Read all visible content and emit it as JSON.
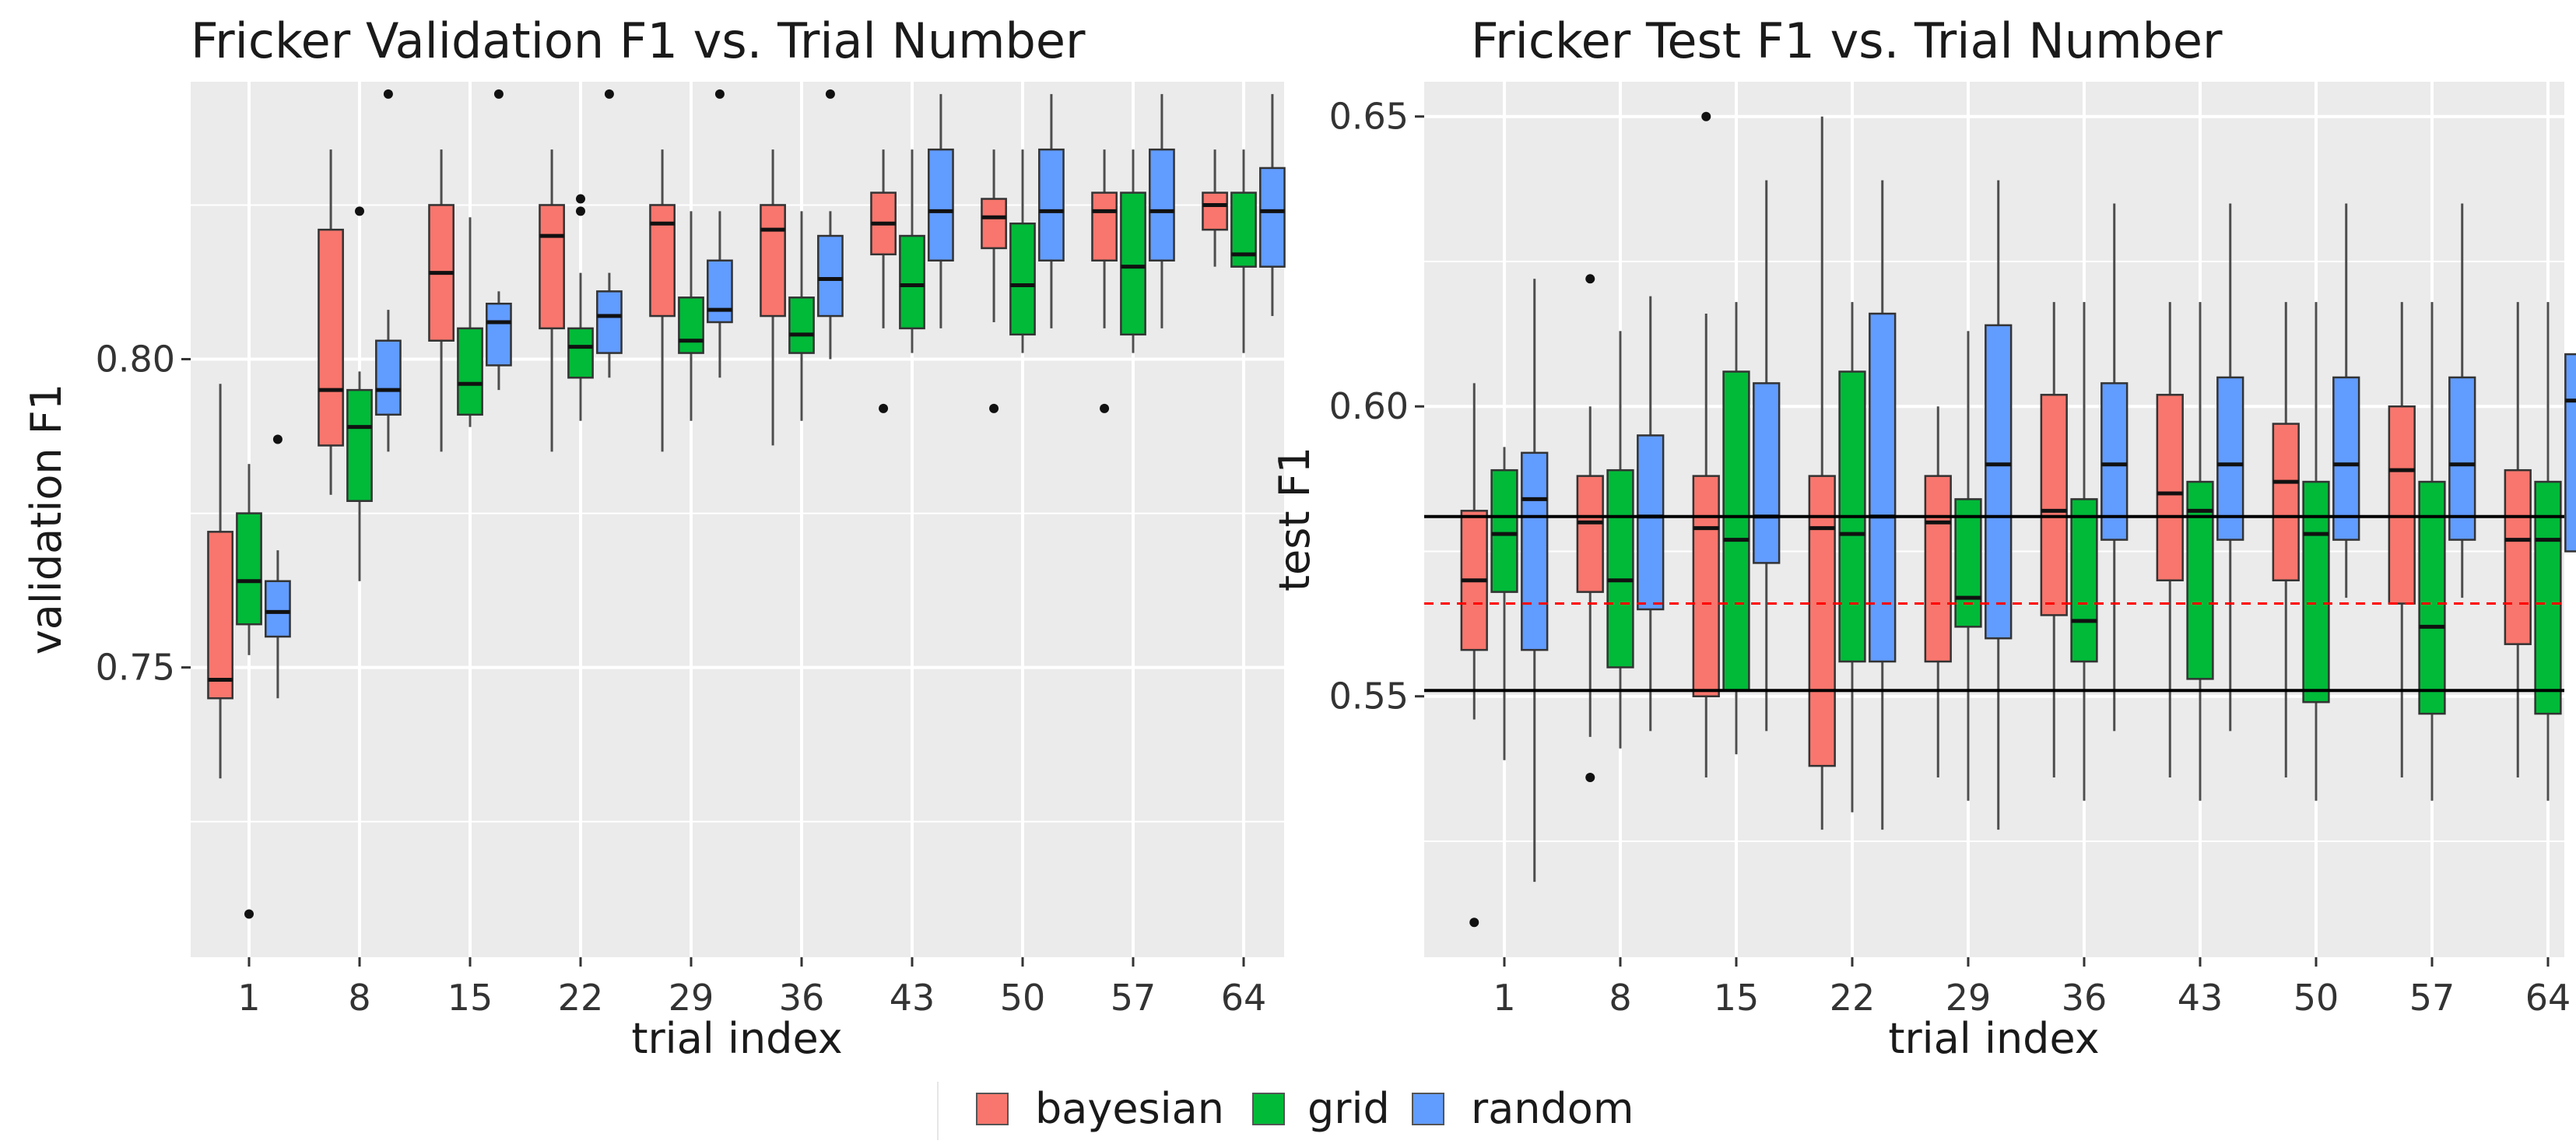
{
  "chart_data": [
    {
      "type": "boxplot",
      "title": "Fricker Validation F1 vs. Trial Number",
      "xlabel": "trial index",
      "ylabel": "validation F1",
      "categories": [
        "1",
        "8",
        "15",
        "22",
        "29",
        "36",
        "43",
        "50",
        "57",
        "64"
      ],
      "y_ticks": [
        "0.75",
        "0.80"
      ],
      "ylim": [
        0.703,
        0.845
      ],
      "grid": true,
      "series": [
        {
          "name": "bayesian",
          "color": "#f8766d",
          "boxes": [
            {
              "whisker_low": 0.732,
              "q1": 0.745,
              "median": 0.748,
              "q3": 0.772,
              "whisker_high": 0.796,
              "outliers": []
            },
            {
              "whisker_low": 0.778,
              "q1": 0.786,
              "median": 0.795,
              "q3": 0.821,
              "whisker_high": 0.834,
              "outliers": []
            },
            {
              "whisker_low": 0.785,
              "q1": 0.803,
              "median": 0.814,
              "q3": 0.825,
              "whisker_high": 0.834,
              "outliers": []
            },
            {
              "whisker_low": 0.785,
              "q1": 0.805,
              "median": 0.82,
              "q3": 0.825,
              "whisker_high": 0.834,
              "outliers": []
            },
            {
              "whisker_low": 0.785,
              "q1": 0.807,
              "median": 0.822,
              "q3": 0.825,
              "whisker_high": 0.834,
              "outliers": []
            },
            {
              "whisker_low": 0.786,
              "q1": 0.807,
              "median": 0.821,
              "q3": 0.825,
              "whisker_high": 0.834,
              "outliers": []
            },
            {
              "whisker_low": 0.805,
              "q1": 0.817,
              "median": 0.822,
              "q3": 0.827,
              "whisker_high": 0.834,
              "outliers": [
                0.792
              ]
            },
            {
              "whisker_low": 0.806,
              "q1": 0.818,
              "median": 0.823,
              "q3": 0.826,
              "whisker_high": 0.834,
              "outliers": [
                0.792
              ]
            },
            {
              "whisker_low": 0.805,
              "q1": 0.816,
              "median": 0.824,
              "q3": 0.827,
              "whisker_high": 0.834,
              "outliers": [
                0.792
              ]
            },
            {
              "whisker_low": 0.815,
              "q1": 0.821,
              "median": 0.825,
              "q3": 0.827,
              "whisker_high": 0.834,
              "outliers": []
            }
          ]
        },
        {
          "name": "grid",
          "color": "#00ba38",
          "boxes": [
            {
              "whisker_low": 0.752,
              "q1": 0.757,
              "median": 0.764,
              "q3": 0.775,
              "whisker_high": 0.783,
              "outliers": [
                0.71
              ]
            },
            {
              "whisker_low": 0.764,
              "q1": 0.777,
              "median": 0.789,
              "q3": 0.795,
              "whisker_high": 0.798,
              "outliers": [
                0.824
              ]
            },
            {
              "whisker_low": 0.789,
              "q1": 0.791,
              "median": 0.796,
              "q3": 0.805,
              "whisker_high": 0.823,
              "outliers": []
            },
            {
              "whisker_low": 0.79,
              "q1": 0.797,
              "median": 0.802,
              "q3": 0.805,
              "whisker_high": 0.814,
              "outliers": [
                0.824,
                0.826
              ]
            },
            {
              "whisker_low": 0.79,
              "q1": 0.801,
              "median": 0.803,
              "q3": 0.81,
              "whisker_high": 0.824,
              "outliers": []
            },
            {
              "whisker_low": 0.79,
              "q1": 0.801,
              "median": 0.804,
              "q3": 0.81,
              "whisker_high": 0.824,
              "outliers": []
            },
            {
              "whisker_low": 0.801,
              "q1": 0.805,
              "median": 0.812,
              "q3": 0.82,
              "whisker_high": 0.834,
              "outliers": []
            },
            {
              "whisker_low": 0.801,
              "q1": 0.804,
              "median": 0.812,
              "q3": 0.822,
              "whisker_high": 0.834,
              "outliers": []
            },
            {
              "whisker_low": 0.801,
              "q1": 0.804,
              "median": 0.815,
              "q3": 0.827,
              "whisker_high": 0.834,
              "outliers": []
            },
            {
              "whisker_low": 0.801,
              "q1": 0.815,
              "median": 0.817,
              "q3": 0.827,
              "whisker_high": 0.834,
              "outliers": []
            }
          ]
        },
        {
          "name": "random",
          "color": "#619cff",
          "boxes": [
            {
              "whisker_low": 0.745,
              "q1": 0.755,
              "median": 0.759,
              "q3": 0.764,
              "whisker_high": 0.769,
              "outliers": [
                0.787
              ]
            },
            {
              "whisker_low": 0.785,
              "q1": 0.791,
              "median": 0.795,
              "q3": 0.803,
              "whisker_high": 0.808,
              "outliers": [
                0.843
              ]
            },
            {
              "whisker_low": 0.795,
              "q1": 0.799,
              "median": 0.806,
              "q3": 0.809,
              "whisker_high": 0.811,
              "outliers": [
                0.843
              ]
            },
            {
              "whisker_low": 0.797,
              "q1": 0.801,
              "median": 0.807,
              "q3": 0.811,
              "whisker_high": 0.814,
              "outliers": [
                0.843
              ]
            },
            {
              "whisker_low": 0.797,
              "q1": 0.806,
              "median": 0.808,
              "q3": 0.816,
              "whisker_high": 0.824,
              "outliers": [
                0.843
              ]
            },
            {
              "whisker_low": 0.8,
              "q1": 0.807,
              "median": 0.813,
              "q3": 0.82,
              "whisker_high": 0.824,
              "outliers": [
                0.843
              ]
            },
            {
              "whisker_low": 0.805,
              "q1": 0.816,
              "median": 0.824,
              "q3": 0.834,
              "whisker_high": 0.843,
              "outliers": []
            },
            {
              "whisker_low": 0.805,
              "q1": 0.816,
              "median": 0.824,
              "q3": 0.834,
              "whisker_high": 0.843,
              "outliers": []
            },
            {
              "whisker_low": 0.805,
              "q1": 0.816,
              "median": 0.824,
              "q3": 0.834,
              "whisker_high": 0.843,
              "outliers": []
            },
            {
              "whisker_low": 0.807,
              "q1": 0.815,
              "median": 0.824,
              "q3": 0.831,
              "whisker_high": 0.843,
              "outliers": []
            }
          ]
        }
      ]
    },
    {
      "type": "boxplot",
      "title": "Fricker Test F1 vs. Trial Number",
      "xlabel": "trial index",
      "ylabel": "test F1",
      "categories": [
        "1",
        "8",
        "15",
        "22",
        "29",
        "36",
        "43",
        "50",
        "57",
        "64"
      ],
      "y_ticks": [
        "0.55",
        "0.60",
        "0.65"
      ],
      "ylim": [
        0.505,
        0.656
      ],
      "grid": true,
      "reference_lines": [
        {
          "value": 0.581,
          "style": "solid",
          "color": "#000000"
        },
        {
          "value": 0.566,
          "style": "dashed",
          "color": "#ff0000"
        },
        {
          "value": 0.551,
          "style": "solid",
          "color": "#000000"
        }
      ],
      "series": [
        {
          "name": "bayesian",
          "color": "#f8766d",
          "boxes": [
            {
              "whisker_low": 0.546,
              "q1": 0.558,
              "median": 0.57,
              "q3": 0.582,
              "whisker_high": 0.604,
              "outliers": [
                0.511
              ]
            },
            {
              "whisker_low": 0.543,
              "q1": 0.568,
              "median": 0.58,
              "q3": 0.588,
              "whisker_high": 0.6,
              "outliers": [
                0.536,
                0.622
              ]
            },
            {
              "whisker_low": 0.536,
              "q1": 0.55,
              "median": 0.579,
              "q3": 0.588,
              "whisker_high": 0.616,
              "outliers": [
                0.65
              ]
            },
            {
              "whisker_low": 0.527,
              "q1": 0.538,
              "median": 0.579,
              "q3": 0.588,
              "whisker_high": 0.65,
              "outliers": []
            },
            {
              "whisker_low": 0.536,
              "q1": 0.556,
              "median": 0.58,
              "q3": 0.588,
              "whisker_high": 0.6,
              "outliers": []
            },
            {
              "whisker_low": 0.536,
              "q1": 0.564,
              "median": 0.582,
              "q3": 0.602,
              "whisker_high": 0.618,
              "outliers": []
            },
            {
              "whisker_low": 0.536,
              "q1": 0.57,
              "median": 0.585,
              "q3": 0.602,
              "whisker_high": 0.618,
              "outliers": []
            },
            {
              "whisker_low": 0.536,
              "q1": 0.57,
              "median": 0.587,
              "q3": 0.597,
              "whisker_high": 0.618,
              "outliers": []
            },
            {
              "whisker_low": 0.536,
              "q1": 0.566,
              "median": 0.589,
              "q3": 0.6,
              "whisker_high": 0.618,
              "outliers": []
            },
            {
              "whisker_low": 0.536,
              "q1": 0.559,
              "median": 0.577,
              "q3": 0.589,
              "whisker_high": 0.618,
              "outliers": []
            }
          ]
        },
        {
          "name": "grid",
          "color": "#00ba38",
          "boxes": [
            {
              "whisker_low": 0.539,
              "q1": 0.568,
              "median": 0.578,
              "q3": 0.589,
              "whisker_high": 0.593,
              "outliers": []
            },
            {
              "whisker_low": 0.541,
              "q1": 0.555,
              "median": 0.57,
              "q3": 0.589,
              "whisker_high": 0.613,
              "outliers": []
            },
            {
              "whisker_low": 0.54,
              "q1": 0.551,
              "median": 0.577,
              "q3": 0.606,
              "whisker_high": 0.618,
              "outliers": []
            },
            {
              "whisker_low": 0.53,
              "q1": 0.556,
              "median": 0.578,
              "q3": 0.606,
              "whisker_high": 0.618,
              "outliers": []
            },
            {
              "whisker_low": 0.532,
              "q1": 0.562,
              "median": 0.567,
              "q3": 0.584,
              "whisker_high": 0.613,
              "outliers": []
            },
            {
              "whisker_low": 0.532,
              "q1": 0.556,
              "median": 0.563,
              "q3": 0.584,
              "whisker_high": 0.618,
              "outliers": []
            },
            {
              "whisker_low": 0.532,
              "q1": 0.553,
              "median": 0.582,
              "q3": 0.587,
              "whisker_high": 0.618,
              "outliers": []
            },
            {
              "whisker_low": 0.532,
              "q1": 0.549,
              "median": 0.578,
              "q3": 0.587,
              "whisker_high": 0.618,
              "outliers": []
            },
            {
              "whisker_low": 0.532,
              "q1": 0.547,
              "median": 0.562,
              "q3": 0.587,
              "whisker_high": 0.618,
              "outliers": []
            },
            {
              "whisker_low": 0.532,
              "q1": 0.547,
              "median": 0.577,
              "q3": 0.587,
              "whisker_high": 0.618,
              "outliers": []
            }
          ]
        },
        {
          "name": "random",
          "color": "#619cff",
          "boxes": [
            {
              "whisker_low": 0.518,
              "q1": 0.558,
              "median": 0.584,
              "q3": 0.592,
              "whisker_high": 0.622,
              "outliers": []
            },
            {
              "whisker_low": 0.544,
              "q1": 0.565,
              "median": 0.581,
              "q3": 0.595,
              "whisker_high": 0.619,
              "outliers": []
            },
            {
              "whisker_low": 0.544,
              "q1": 0.573,
              "median": 0.581,
              "q3": 0.604,
              "whisker_high": 0.639,
              "outliers": []
            },
            {
              "whisker_low": 0.527,
              "q1": 0.556,
              "median": 0.581,
              "q3": 0.616,
              "whisker_high": 0.639,
              "outliers": []
            },
            {
              "whisker_low": 0.527,
              "q1": 0.56,
              "median": 0.59,
              "q3": 0.614,
              "whisker_high": 0.639,
              "outliers": []
            },
            {
              "whisker_low": 0.544,
              "q1": 0.577,
              "median": 0.59,
              "q3": 0.604,
              "whisker_high": 0.635,
              "outliers": []
            },
            {
              "whisker_low": 0.544,
              "q1": 0.577,
              "median": 0.59,
              "q3": 0.605,
              "whisker_high": 0.635,
              "outliers": []
            },
            {
              "whisker_low": 0.567,
              "q1": 0.577,
              "median": 0.59,
              "q3": 0.605,
              "whisker_high": 0.635,
              "outliers": []
            },
            {
              "whisker_low": 0.567,
              "q1": 0.577,
              "median": 0.59,
              "q3": 0.605,
              "whisker_high": 0.635,
              "outliers": []
            },
            {
              "whisker_low": 0.564,
              "q1": 0.575,
              "median": 0.601,
              "q3": 0.609,
              "whisker_high": 0.635,
              "outliers": []
            }
          ]
        }
      ]
    }
  ],
  "legend": {
    "placement": "bottom",
    "items": [
      {
        "label": "bayesian",
        "color": "#f8766d"
      },
      {
        "label": "grid",
        "color": "#00ba38"
      },
      {
        "label": "random",
        "color": "#619cff"
      }
    ]
  },
  "style": {
    "panel_background": "#ebebeb",
    "grid_color": "#ffffff"
  }
}
